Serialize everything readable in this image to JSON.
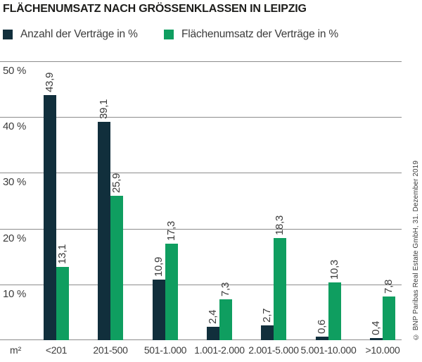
{
  "chart_data": {
    "type": "bar",
    "title": "FLÄCHENUMSATZ NACH GRÖSSENKLASSEN IN LEIPZIG",
    "x_unit_label": "m²",
    "categories": [
      "<201",
      "201-500",
      "501-1.000",
      "1.001-2.000",
      "2.001-5.000",
      "5.001-10.000",
      ">10.000"
    ],
    "series": [
      {
        "name": "Anzahl der Verträge in %",
        "color": "#112f3c",
        "values": [
          43.9,
          39.1,
          10.9,
          2.4,
          2.7,
          0.6,
          0.4
        ],
        "display_labels": [
          "43,9",
          "39,1",
          "10,9",
          "2,4",
          "2,7",
          "0,6",
          "0,4"
        ]
      },
      {
        "name": "Flächenumsatz der Verträge in %",
        "color": "#0f9e60",
        "values": [
          13.1,
          25.9,
          17.3,
          7.3,
          18.3,
          10.3,
          7.8
        ],
        "display_labels": [
          "13,1",
          "25,9",
          "17,3",
          "7,3",
          "18,3",
          "10,3",
          "7,8"
        ]
      }
    ],
    "y_ticks": [
      {
        "value": 10,
        "label": "10 %"
      },
      {
        "value": 20,
        "label": "20 %"
      },
      {
        "value": 30,
        "label": "30 %"
      },
      {
        "value": 40,
        "label": "40 %"
      },
      {
        "value": 50,
        "label": "50 %"
      }
    ],
    "ylim": [
      0,
      50
    ],
    "grid": true,
    "legend_position": "top",
    "value_label_rotation": -90,
    "source": "© BNP Paribas Real Estate GmbH, 31. Dezember 2019"
  },
  "colors": {
    "bar_dark": "#112f3c",
    "bar_green": "#0f9e60",
    "gridline": "#8c8c8c",
    "axis_text": "#3c3c3c",
    "title_text": "#1d1d1b",
    "background": "#ffffff"
  }
}
